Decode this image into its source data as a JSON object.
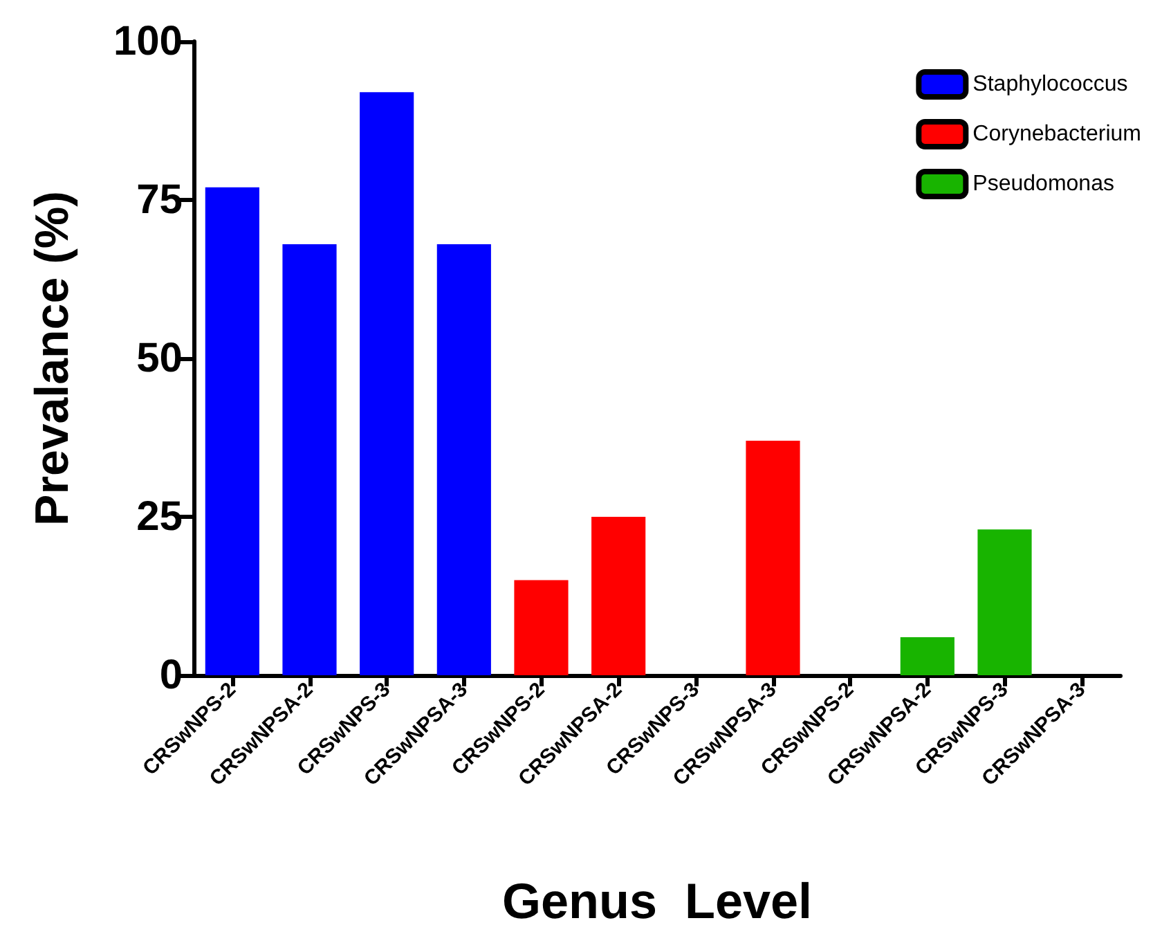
{
  "chart_data": {
    "type": "bar",
    "xlabel": "Genus  Level",
    "ylabel": "Prevalance (%)",
    "categories": [
      "CRSwNPS-2",
      "CRSwNPSA-2",
      "CRSwNPS-3",
      "CRSwNPSA-3",
      "CRSwNPS-2",
      "CRSwNPSA-2",
      "CRSwNPS-3",
      "CRSwNPSA-3",
      "CRSwNPS-2",
      "CRSwNPSA-2",
      "CRSwNPS-3",
      "CRSwNPSA-3"
    ],
    "series": [
      {
        "name": "Staphylococcus",
        "color": "#0000ff",
        "values": [
          77,
          68,
          92,
          68,
          null,
          null,
          null,
          null,
          null,
          null,
          null,
          null
        ]
      },
      {
        "name": "Corynebacterium",
        "color": "#ff0000",
        "values": [
          null,
          null,
          null,
          null,
          15,
          25,
          0,
          37,
          null,
          null,
          null,
          null
        ]
      },
      {
        "name": "Pseudomonas",
        "color": "#18b400",
        "values": [
          null,
          null,
          null,
          null,
          null,
          null,
          null,
          null,
          0,
          6,
          23,
          0
        ]
      }
    ],
    "ylim": [
      0,
      100
    ],
    "yticks": [
      0,
      25,
      50,
      75,
      100
    ],
    "grid": false,
    "legend": "top right"
  }
}
